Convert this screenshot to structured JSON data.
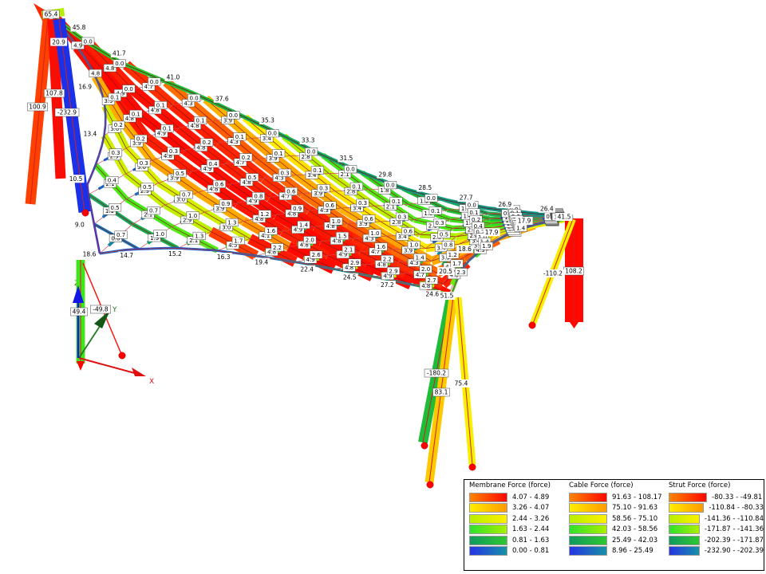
{
  "legend": {
    "groups": [
      {
        "title": "Membrane Force (force)",
        "rows": [
          "4.07 - 4.89",
          "3.26 - 4.07",
          "2.44 - 3.26",
          "1.63 - 2.44",
          "0.81 - 1.63",
          "0.00 - 0.81"
        ]
      },
      {
        "title": "Cable Force (force)",
        "rows": [
          "91.63 - 108.17",
          "75.10 - 91.63",
          "58.56 - 75.10",
          "42.03 - 58.56",
          "25.49 - 42.03",
          "8.96 - 25.49"
        ]
      },
      {
        "title": "Strut Force (force)",
        "rows": [
          "-80.33 - -49.81",
          "-110.84 - -80.33",
          "-141.36 - -110.84",
          "-171.87 - -141.36",
          "-202.39 - -171.87",
          "-232.90 - -202.39"
        ]
      }
    ],
    "row_gradients": [
      [
        "#ff8400",
        "#ff0700"
      ],
      [
        "#ffee00",
        "#ff9900"
      ],
      [
        "#b8f000",
        "#fdf000"
      ],
      [
        "#2ee22e",
        "#aaf000"
      ],
      [
        "#0f9a60",
        "#2fc72f"
      ],
      [
        "#2633e6",
        "#1691a6"
      ]
    ]
  },
  "axes_triad": {
    "x_label": "X",
    "y_label": "Y",
    "z_label": "Z"
  },
  "supports": {
    "top_left_mast": {
      "peak_value": "65.4",
      "bars": [
        {
          "value": "100.9"
        },
        {
          "value": "107.8"
        },
        {
          "value": "-232.9"
        }
      ]
    },
    "left_anchor": {
      "cable_value": "49.4",
      "tie_value": "-49.8"
    },
    "bottom_mast": {
      "node_value": "51.5",
      "bars": [
        {
          "value": "-180.2"
        },
        {
          "value": "83.1"
        },
        {
          "value": "75.4"
        }
      ]
    },
    "right_mast": {
      "node_value": "41.5",
      "bars": [
        {
          "value": "108.2"
        },
        {
          "value": "-110.2"
        }
      ]
    }
  },
  "edge_cables": {
    "top_values": [
      "45.8",
      "41.7",
      "41.0",
      "37.6",
      "35.3",
      "33.3",
      "31.5",
      "29.8",
      "28.5",
      "27.7",
      "26.9",
      "26.4"
    ],
    "left_values": [
      "20.9",
      "16.9",
      "13.4",
      "10.5",
      "9.0"
    ],
    "bottom_left_values": [
      "18.6",
      "14.7",
      "15.2",
      "16.3",
      "19.4",
      "22.4",
      "24.5",
      "27.2",
      "24.6"
    ],
    "bottom_right_values": [
      "20.5",
      "18.6",
      "17.9",
      "17.9"
    ]
  },
  "mesh": {
    "warp_chain_values_top": [
      4.9,
      4.8,
      4.7,
      4.3,
      3.9,
      3.4,
      2.8,
      2.1,
      1.9,
      1.4,
      1.2,
      0.9,
      0.6
    ],
    "warp_chain_values_left": [
      4.8,
      3.9,
      3.0,
      2.9,
      2.1,
      1.2,
      0.5
    ],
    "bottom_boost_max": 4.9,
    "weft_max": 3.3,
    "membrane_max": 4.89
  },
  "force_scale": {
    "stops": [
      [
        0,
        "#1a31e8"
      ],
      [
        0.12,
        "#1678b8"
      ],
      [
        0.2,
        "#119e7a"
      ],
      [
        0.3,
        "#1fc12f"
      ],
      [
        0.42,
        "#46e81a"
      ],
      [
        0.55,
        "#a8f000"
      ],
      [
        0.68,
        "#fff000"
      ],
      [
        0.8,
        "#ffaa00"
      ],
      [
        0.9,
        "#ff5500"
      ],
      [
        1,
        "#ff0800"
      ]
    ],
    "membrane_range": [
      0,
      4.89
    ],
    "cable_range": [
      8.96,
      108.17
    ],
    "strut_range": [
      -232.9,
      -49.81
    ]
  }
}
